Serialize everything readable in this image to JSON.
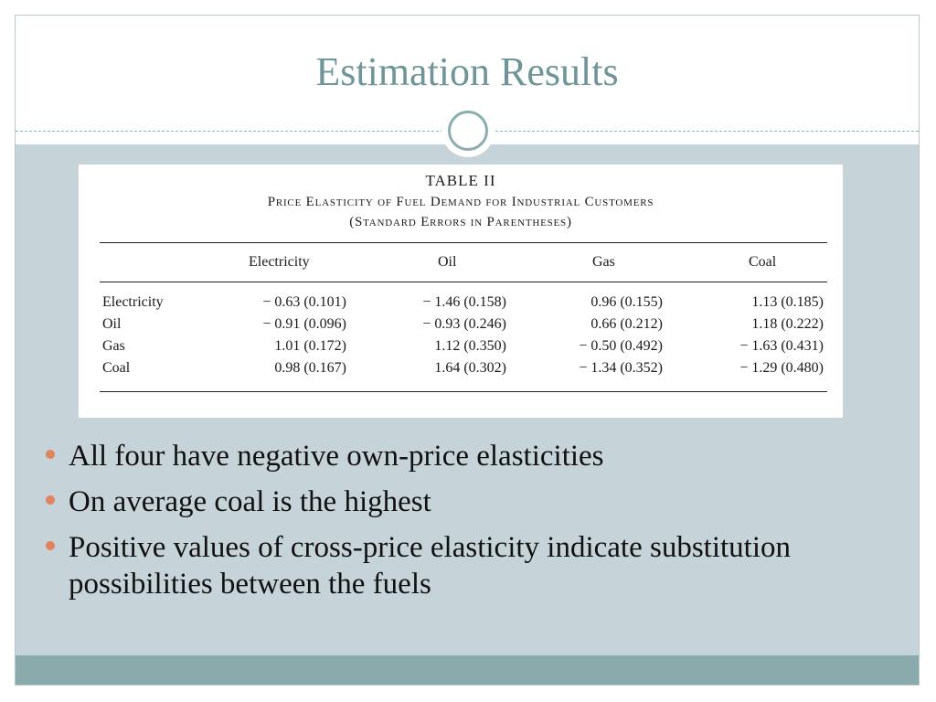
{
  "slide": {
    "title": "Estimation Results"
  },
  "table": {
    "caption": "TABLE II",
    "subtitle": "Price Elasticity of Fuel Demand for Industrial Customers",
    "note": "(Standard Errors in Parentheses)",
    "columns": [
      "Electricity",
      "Oil",
      "Gas",
      "Coal"
    ],
    "rows": [
      {
        "label": "Electricity",
        "cells": [
          "− 0.63 (0.101)",
          "− 1.46 (0.158)",
          "0.96 (0.155)",
          "1.13 (0.185)"
        ]
      },
      {
        "label": "Oil",
        "cells": [
          "− 0.91 (0.096)",
          "− 0.93 (0.246)",
          "0.66 (0.212)",
          "1.18 (0.222)"
        ]
      },
      {
        "label": "Gas",
        "cells": [
          "1.01 (0.172)",
          "1.12 (0.350)",
          "− 0.50 (0.492)",
          "− 1.63 (0.431)"
        ]
      },
      {
        "label": "Coal",
        "cells": [
          "0.98 (0.167)",
          "1.64 (0.302)",
          "− 1.34 (0.352)",
          "− 1.29 (0.480)"
        ]
      }
    ]
  },
  "bullets": [
    "All four have negative own-price elasticities",
    "On average coal is the highest",
    "Positive values of cross-price elasticity indicate substitution possibilities between the fuels"
  ],
  "colors": {
    "title": "#6f9598",
    "band": "#c6d3d9",
    "footer": "#8aaaab",
    "bullet": "#e2835f"
  }
}
